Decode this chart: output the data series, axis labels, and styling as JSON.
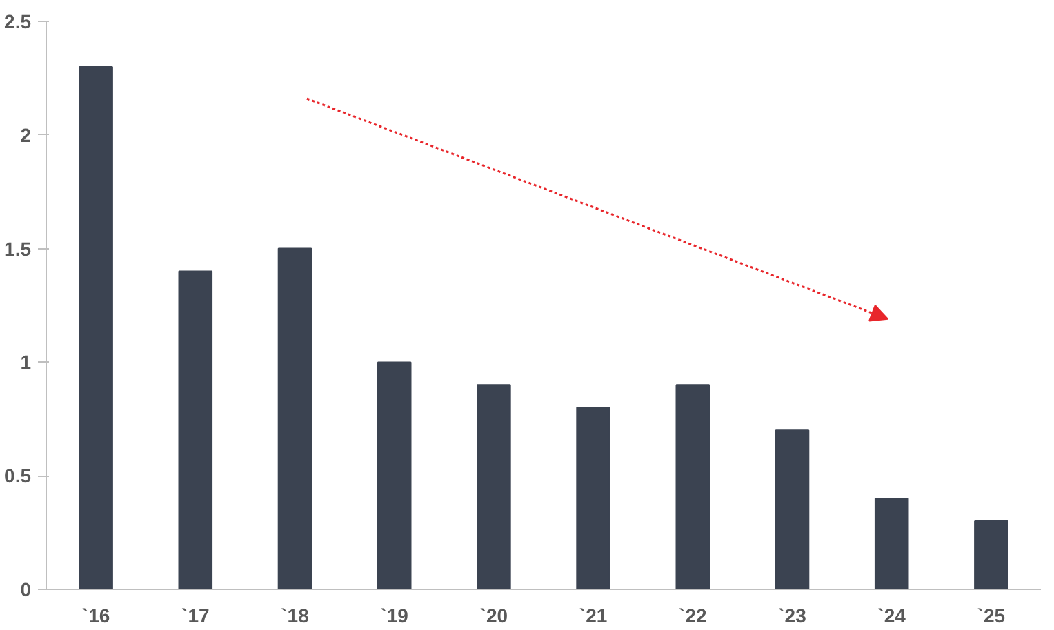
{
  "chart_data": {
    "type": "bar",
    "categories": [
      "`16",
      "`17",
      "`18",
      "`19",
      "`20",
      "`21",
      "`22",
      "`23",
      "`24",
      "`25"
    ],
    "values": [
      2.3,
      1.4,
      1.5,
      1.0,
      0.9,
      0.8,
      0.9,
      0.7,
      0.4,
      0.3
    ],
    "color": "#3b4351",
    "ylim": [
      0,
      2.5
    ],
    "yticks": [
      0,
      0.5,
      1,
      1.5,
      2,
      2.5
    ],
    "grid": false
  }
}
